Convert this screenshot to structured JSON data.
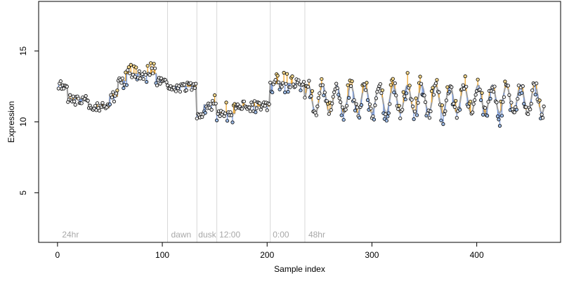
{
  "chart_data": {
    "type": "scatter",
    "xlabel": "Sample index",
    "ylabel": "Expression",
    "xlim": [
      -18,
      480
    ],
    "ylim": [
      1.5,
      18.5
    ],
    "x_ticks": [
      0,
      100,
      200,
      300,
      400
    ],
    "y_ticks": [
      5,
      10,
      15
    ],
    "grid": false,
    "region_boundaries": [
      105,
      133,
      152,
      203,
      236
    ],
    "region_labels": [
      {
        "label": "24hr",
        "x": 3
      },
      {
        "label": "dawn",
        "x": 107
      },
      {
        "label": "dusk",
        "x": 133
      },
      {
        "label": "12:00",
        "x": 153
      },
      {
        "label": "0:00",
        "x": 204
      },
      {
        "label": "48hr",
        "x": 238
      }
    ],
    "colors": {
      "fit_line": "#a0a0a0",
      "residual_below": "#7799dd",
      "residual_above": "#f0a830",
      "region_line": "#d8d8d8",
      "point_high": "#f5d88c",
      "point_low": "#9dbce8",
      "point_mid": "#e8e8e8"
    },
    "segments": [
      {
        "x0": 1,
        "x1": 10,
        "level": 12.6,
        "noise": 0.35
      },
      {
        "x0": 10,
        "x1": 30,
        "level": 11.6,
        "noise": 0.3
      },
      {
        "x0": 30,
        "x1": 50,
        "level": 11.0,
        "noise": 0.3
      },
      {
        "x0": 50,
        "x1": 58,
        "level": 11.8,
        "noise": 0.4
      },
      {
        "x0": 58,
        "x1": 66,
        "level": 12.9,
        "noise": 0.4
      },
      {
        "x0": 66,
        "x1": 95,
        "level": 13.4,
        "noise": 0.6
      },
      {
        "x0": 95,
        "x1": 105,
        "level": 12.9,
        "noise": 0.3
      },
      {
        "x0": 105,
        "x1": 133,
        "level": 12.5,
        "noise": 0.3
      },
      {
        "x0": 133,
        "x1": 140,
        "level": 10.5,
        "noise": 0.3
      },
      {
        "x0": 140,
        "x1": 152,
        "level": 11.2,
        "noise": 0.45
      },
      {
        "x0": 152,
        "x1": 170,
        "level": 10.6,
        "noise": 0.5
      },
      {
        "x0": 170,
        "x1": 203,
        "level": 11.1,
        "noise": 0.35
      },
      {
        "x0": 203,
        "x1": 236,
        "level": 12.7,
        "noise": 0.45
      }
    ],
    "oscillation": {
      "x0": 236,
      "x1": 464,
      "mean": 11.6,
      "amplitude": 1.0,
      "period": 13.5,
      "noise": 0.55
    }
  }
}
